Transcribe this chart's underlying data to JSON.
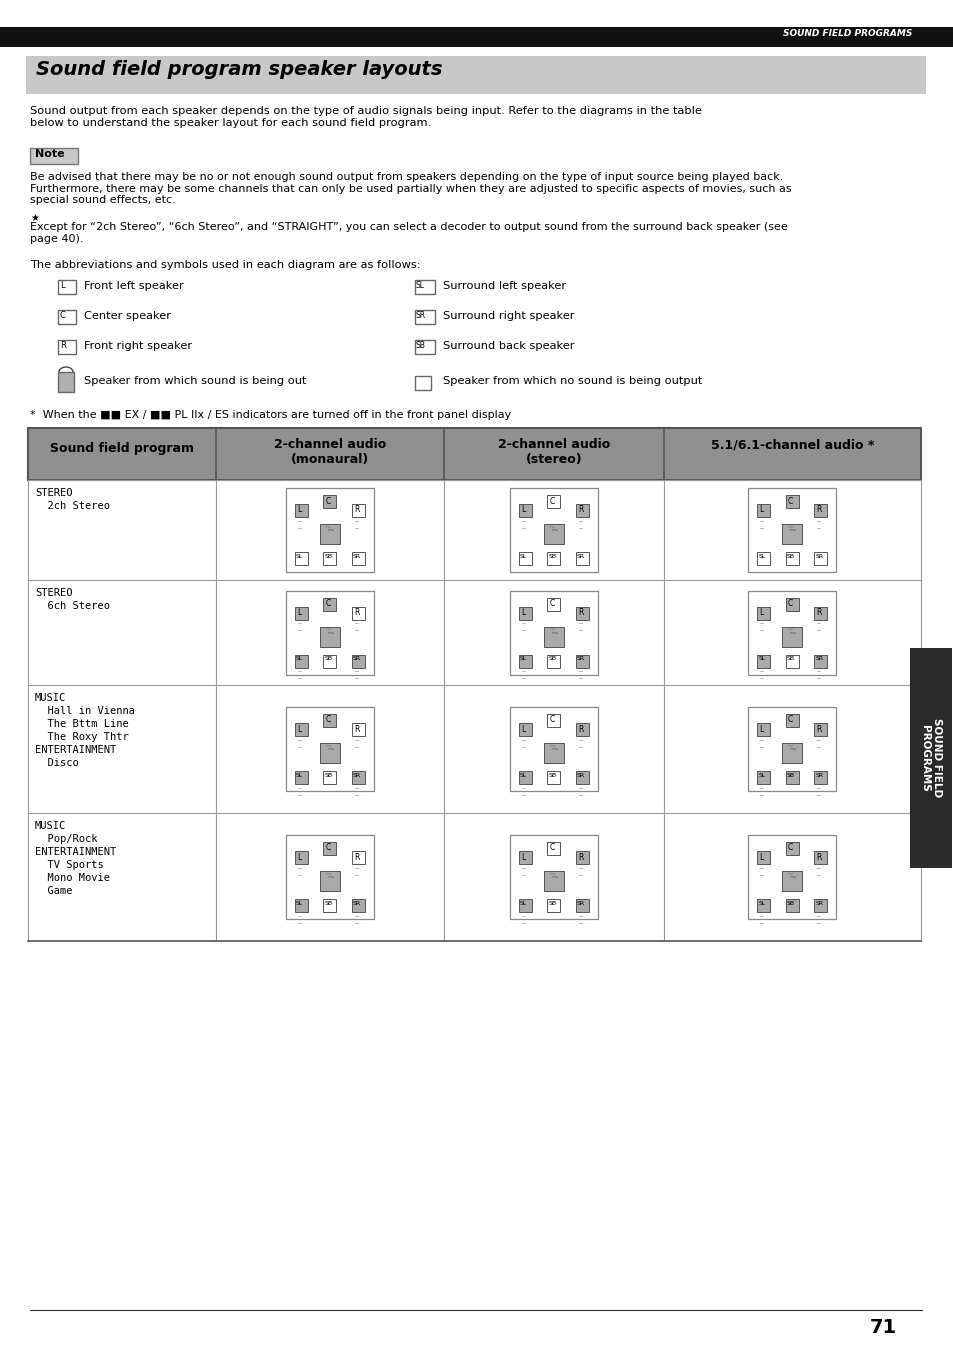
{
  "page_bg": "#ffffff",
  "top_bar_text": "SOUND FIELD PROGRAMS",
  "title_text": "Sound field program speaker layouts",
  "body_text1": "Sound output from each speaker depends on the type of audio signals being input. Refer to the diagrams in the table\nbelow to understand the speaker layout for each sound field program.",
  "note_box_text": "Note",
  "note_body": "Be advised that there may be no or not enough sound output from speakers depending on the type of input source being played back.\nFurthermore, there may be some channels that can only be used partially when they are adjusted to specific aspects of movies, such as\nspecial sound effects, etc.",
  "tip_text": "Except for “2ch Stereo”, “6ch Stereo”, and “STRAIGHT”, you can select a decoder to output sound from the surround back speaker (see\npage 40).",
  "abbrev_intro": "The abbreviations and symbols used in each diagram are as follows:",
  "legend_items_left": [
    {
      "symbol": "L",
      "text": "Front left speaker"
    },
    {
      "symbol": "C",
      "text": "Center speaker"
    },
    {
      "symbol": "R",
      "text": "Front right speaker"
    }
  ],
  "legend_items_right": [
    {
      "symbol": "SL",
      "text": "Surround left speaker"
    },
    {
      "symbol": "SR",
      "text": "Surround right speaker"
    },
    {
      "symbol": "SB",
      "text": "Surround back speaker"
    }
  ],
  "sound_out_text": "Speaker from which sound is being out",
  "no_sound_text": "Speaker from which no sound is being output",
  "footnote": "*  When the ■■ EX / ■■ PL IIx / ES indicators are turned off in the front panel display",
  "table_col_headers": [
    "Sound field program",
    "2-channel audio\n(monaural)",
    "2-channel audio\n(stereo)",
    "5.1/6.1-channel audio *"
  ],
  "table_rows": [
    {
      "labels": [
        "STEREO",
        "  2ch Stereo"
      ],
      "diagrams": [
        "stereo_2ch_mono",
        "stereo_2ch_stereo",
        "stereo_2ch_51"
      ]
    },
    {
      "labels": [
        "STEREO",
        "  6ch Stereo"
      ],
      "diagrams": [
        "stereo_6ch_mono",
        "stereo_6ch_stereo",
        "stereo_6ch_51"
      ]
    },
    {
      "labels": [
        "MUSIC",
        "  Hall in Vienna",
        "  The Bttm Line",
        "  The Roxy Thtr",
        "ENTERTAINMENT",
        "  Disco"
      ],
      "diagrams": [
        "music_mono",
        "music_stereo",
        "music_51"
      ]
    },
    {
      "labels": [
        "MUSIC",
        "  Pop/Rock",
        "ENTERTAINMENT",
        "  TV Sports",
        "  Mono Movie",
        "  Game"
      ],
      "diagrams": [
        "pops_mono",
        "pops_stereo",
        "pops_51"
      ]
    }
  ],
  "diagram_active": {
    "stereo_2ch_mono": {
      "L": 1,
      "C": 1,
      "R": 0,
      "sub": 1,
      "SL": 0,
      "SB": 0,
      "SR": 0
    },
    "stereo_2ch_stereo": {
      "L": 1,
      "C": 0,
      "R": 1,
      "sub": 1,
      "SL": 0,
      "SB": 0,
      "SR": 0
    },
    "stereo_2ch_51": {
      "L": 1,
      "C": 1,
      "R": 1,
      "sub": 1,
      "SL": 0,
      "SB": 0,
      "SR": 0
    },
    "stereo_6ch_mono": {
      "L": 1,
      "C": 1,
      "R": 0,
      "sub": 1,
      "SL": 1,
      "SB": 0,
      "SR": 1
    },
    "stereo_6ch_stereo": {
      "L": 1,
      "C": 0,
      "R": 1,
      "sub": 1,
      "SL": 1,
      "SB": 0,
      "SR": 1
    },
    "stereo_6ch_51": {
      "L": 1,
      "C": 1,
      "R": 1,
      "sub": 1,
      "SL": 1,
      "SB": 0,
      "SR": 1
    },
    "music_mono": {
      "L": 1,
      "C": 1,
      "R": 0,
      "sub": 1,
      "SL": 1,
      "SB": 0,
      "SR": 1
    },
    "music_stereo": {
      "L": 1,
      "C": 0,
      "R": 1,
      "sub": 1,
      "SL": 1,
      "SB": 0,
      "SR": 1
    },
    "music_51": {
      "L": 1,
      "C": 1,
      "R": 1,
      "sub": 1,
      "SL": 1,
      "SB": 1,
      "SR": 1
    },
    "pops_mono": {
      "L": 1,
      "C": 1,
      "R": 0,
      "sub": 1,
      "SL": 1,
      "SB": 0,
      "SR": 1
    },
    "pops_stereo": {
      "L": 1,
      "C": 0,
      "R": 1,
      "sub": 1,
      "SL": 1,
      "SB": 0,
      "SR": 1
    },
    "pops_51": {
      "L": 1,
      "C": 1,
      "R": 1,
      "sub": 1,
      "SL": 1,
      "SB": 1,
      "SR": 1
    }
  },
  "sidebar_text": "SOUND FIELD\nPROGRAMS",
  "page_number": "71"
}
